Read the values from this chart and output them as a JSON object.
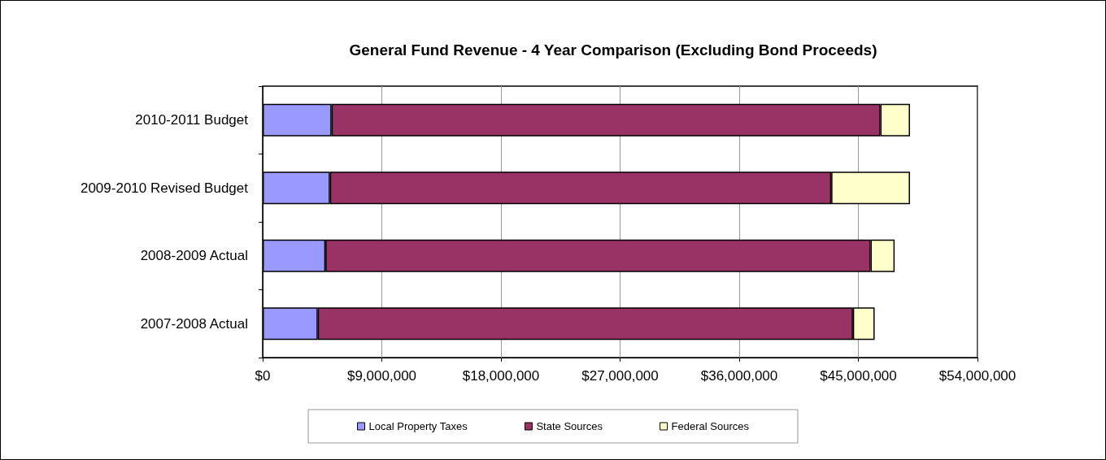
{
  "chart_data": {
    "type": "bar",
    "orientation": "horizontal",
    "stacked": true,
    "title": "General Fund Revenue - 4 Year Comparison (Excluding Bond Proceeds)",
    "categories": [
      "2010-2011 Budget",
      "2009-2010 Revised Budget",
      "2008-2009 Actual",
      "2007-2008 Actual"
    ],
    "series": [
      {
        "name": "Local Property Taxes",
        "color": "#9999ff",
        "values": [
          5200000,
          5080000,
          4740000,
          4160000
        ]
      },
      {
        "name": "State Sources",
        "color": "#993366",
        "values": [
          41460000,
          37870000,
          41180000,
          40430000
        ]
      },
      {
        "name": "Federal Sources",
        "color": "#ffffcc",
        "values": [
          2240000,
          5950000,
          1820000,
          1640000
        ]
      }
    ],
    "xlim": [
      0,
      54000000
    ],
    "xticks": [
      {
        "value": 0,
        "label": "$0"
      },
      {
        "value": 9000000,
        "label": "$9,000,000"
      },
      {
        "value": 18000000,
        "label": "$18,000,000"
      },
      {
        "value": 27000000,
        "label": "$27,000,000"
      },
      {
        "value": 36000000,
        "label": "$36,000,000"
      },
      {
        "value": 45000000,
        "label": "$45,000,000"
      },
      {
        "value": 54000000,
        "label": "$54,000,000"
      }
    ],
    "grid": "x",
    "legend": "bottom"
  }
}
